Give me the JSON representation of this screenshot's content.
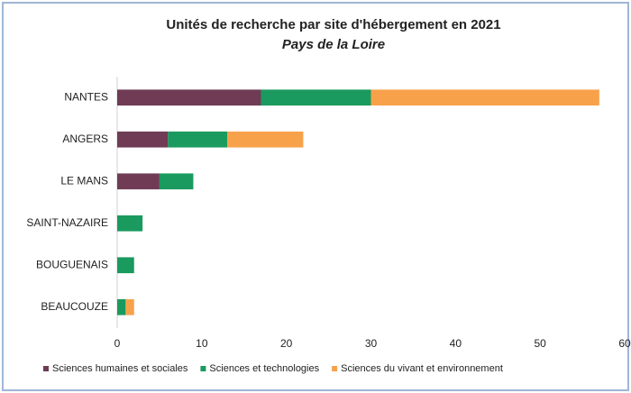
{
  "chart_data": {
    "type": "stacked-bar-horizontal",
    "title": "Unités de recherche par site d'hébergement en 2021",
    "subtitle": "Pays de la Loire",
    "categories": [
      "NANTES",
      "ANGERS",
      "LE MANS",
      "SAINT-NAZAIRE",
      "BOUGUENAIS",
      "BEAUCOUZE"
    ],
    "series": [
      {
        "name": "Sciences humaines et sociales",
        "color": "#6f3b55",
        "values": [
          17,
          6,
          5,
          0,
          0,
          0
        ]
      },
      {
        "name": "Sciences et technologies",
        "color": "#1a9a5e",
        "values": [
          13,
          7,
          4,
          3,
          2,
          1
        ]
      },
      {
        "name": "Sciences du vivant et environnement",
        "color": "#f7a24b",
        "values": [
          27,
          9,
          0,
          0,
          0,
          1
        ]
      }
    ],
    "xlim": [
      0,
      60
    ],
    "xticks": [
      0,
      10,
      20,
      30,
      40,
      50,
      60
    ],
    "grid": false,
    "legend": "bottom"
  }
}
